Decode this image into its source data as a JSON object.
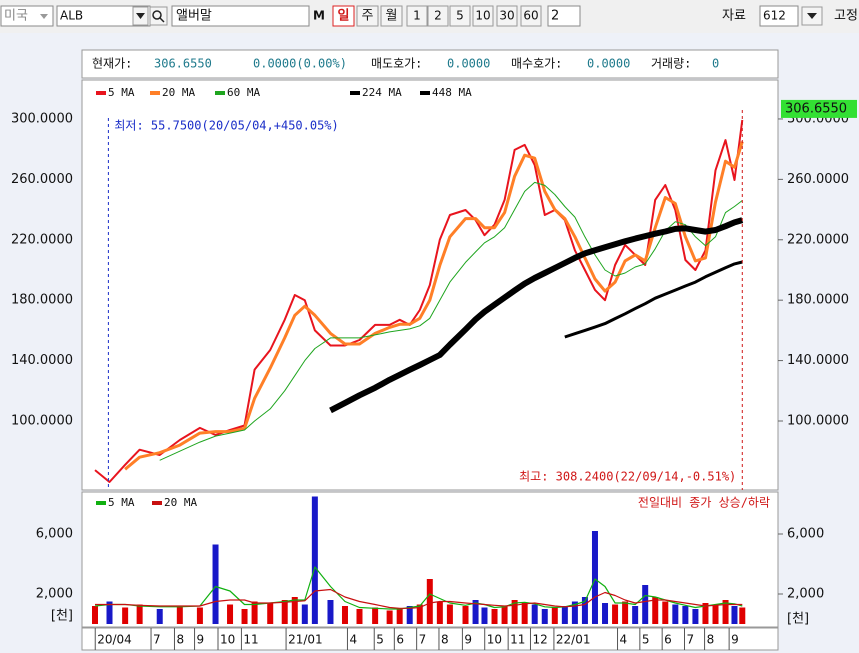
{
  "toolbar": {
    "market": "미국",
    "symbol": "ALB",
    "name": "앨버말",
    "m_button": "M",
    "periods": [
      "일",
      "주",
      "월"
    ],
    "intervals": [
      "1",
      "2",
      "5",
      "10",
      "30",
      "60"
    ],
    "interval_input": "2",
    "data_label": "자료",
    "data_count": "612",
    "fixed": "고정"
  },
  "info_bar": {
    "current_label": "현재가:",
    "current": "306.6550",
    "change": "0.0000(0.00%)",
    "ask_label": "매도호가:",
    "ask": "0.0000",
    "bid_label": "매수호가:",
    "bid": "0.0000",
    "volume_label": "거래량:",
    "volume": "0"
  },
  "chart_data": [
    {
      "type": "line",
      "x": [
        0,
        13,
        27,
        40,
        58,
        76,
        94,
        108,
        121,
        134,
        143,
        157,
        170,
        179,
        188,
        197,
        211,
        224,
        237,
        251,
        264,
        273,
        282,
        291,
        300,
        309,
        318,
        332,
        341,
        349,
        358,
        367,
        376,
        385,
        394,
        403,
        412,
        421,
        430,
        439,
        448,
        457,
        466,
        475,
        484,
        493,
        502,
        511,
        520,
        529,
        538,
        547,
        556,
        565,
        573,
        580
      ],
      "xlim": [
        0,
        612
      ],
      "ylim": [
        54.3,
        325.8
      ],
      "yticks": [
        {
          "value": 300,
          "label": "300.0000"
        },
        {
          "value": 260,
          "label": "260.0000"
        },
        {
          "value": 220,
          "label": "220.0000"
        },
        {
          "value": 180,
          "label": "180.0000"
        },
        {
          "value": 140,
          "label": "140.0000"
        },
        {
          "value": 100,
          "label": "100.0000"
        }
      ],
      "grid": false,
      "series": [
        {
          "name": "5 MA",
          "color": "#e8141e",
          "line_width": 2,
          "values": [
            67.5,
            59.6,
            71,
            81,
            77.5,
            87.4,
            95.4,
            90.7,
            94,
            97,
            134,
            147,
            167,
            183.4,
            180,
            160,
            150,
            150,
            153.6,
            163.6,
            163.6,
            167,
            163.6,
            173.5,
            190,
            220,
            236.4,
            239.7,
            233,
            223,
            230,
            246.4,
            279.5,
            282.8,
            269.5,
            236.4,
            239.7,
            233,
            213,
            200,
            186.8,
            180,
            203.3,
            216.6,
            210,
            203.3,
            246.4,
            256.3,
            239.7,
            206.6,
            200,
            213,
            266,
            286,
            259.6,
            299.3
          ]
        },
        {
          "name": "20 MA",
          "color": "#ff7f27",
          "line_width": 3,
          "values": [
            null,
            null,
            68,
            76,
            79,
            84,
            92,
            93,
            93,
            95,
            115,
            135,
            155,
            170,
            176,
            170,
            158,
            151,
            151,
            158,
            162,
            164,
            164,
            168,
            180,
            203,
            222,
            234,
            234,
            228,
            228,
            238,
            262,
            276,
            274,
            252,
            240,
            234,
            222,
            208,
            194,
            186,
            192,
            206,
            210,
            206,
            228,
            248,
            244,
            222,
            206,
            208,
            245,
            272,
            268,
            285
          ]
        },
        {
          "name": "60 MA",
          "color": "#1fa51f",
          "line_width": 1,
          "values": [
            null,
            null,
            null,
            null,
            74,
            80,
            86,
            90,
            92,
            94,
            100,
            108,
            120,
            130,
            140,
            148,
            155,
            155,
            155,
            157,
            159,
            160,
            161,
            163,
            168,
            180,
            192,
            205,
            212,
            218,
            222,
            228,
            240,
            252,
            258,
            256,
            250,
            242,
            235,
            222,
            210,
            200,
            196,
            198,
            202,
            204,
            214,
            226,
            232,
            230,
            222,
            216,
            222,
            238,
            242,
            246
          ]
        },
        {
          "name": "224 MA",
          "color": "#000000",
          "line_width": 6,
          "values": [
            null,
            null,
            null,
            null,
            null,
            null,
            null,
            null,
            null,
            null,
            null,
            null,
            null,
            null,
            null,
            null,
            107,
            112,
            117,
            122,
            127.3,
            130.6,
            133.9,
            137.1,
            140.4,
            143.7,
            150.5,
            160.6,
            167.3,
            172.3,
            177,
            181.7,
            186.4,
            191,
            194.7,
            198,
            201.3,
            204.6,
            208,
            211,
            213,
            215,
            217,
            219,
            220.8,
            222.4,
            224,
            225.5,
            227.2,
            227.6,
            226.5,
            225.4,
            226.5,
            229,
            231.5,
            233
          ]
        },
        {
          "name": "448 MA",
          "color": "#000000",
          "line_width": 3,
          "values": [
            null,
            null,
            null,
            null,
            null,
            null,
            null,
            null,
            null,
            null,
            null,
            null,
            null,
            null,
            null,
            null,
            null,
            null,
            null,
            null,
            null,
            null,
            null,
            null,
            null,
            null,
            null,
            null,
            null,
            null,
            null,
            null,
            null,
            null,
            null,
            null,
            null,
            155.6,
            157.8,
            160,
            162.2,
            164.5,
            167.8,
            171,
            174.4,
            177.7,
            181.3,
            184,
            186.7,
            189.4,
            192,
            195.5,
            198.5,
            201.5,
            204,
            205.3
          ]
        }
      ],
      "low_marker": {
        "label": "최저: 55.7500(20/05/04,+450.05%)",
        "x": 12,
        "color": "#1a2ec8"
      },
      "high_marker": {
        "label": "최고: 308.2400(22/09/14,-0.51%)",
        "x": 580,
        "color": "#d01818"
      },
      "last_price": 306.655,
      "last_price_label": "306.6550",
      "last_price_color": "#33e033"
    },
    {
      "type": "bar",
      "x": [
        0,
        13,
        27,
        40,
        58,
        76,
        94,
        108,
        121,
        134,
        143,
        157,
        170,
        179,
        188,
        197,
        211,
        224,
        237,
        251,
        264,
        273,
        282,
        291,
        300,
        309,
        318,
        332,
        341,
        349,
        358,
        367,
        376,
        385,
        394,
        403,
        412,
        421,
        430,
        439,
        448,
        457,
        466,
        475,
        484,
        493,
        502,
        511,
        520,
        529,
        538,
        547,
        556,
        565,
        573,
        580
      ],
      "xlim": [
        0,
        612
      ],
      "values": [
        1200,
        1500,
        1100,
        1300,
        1000,
        1200,
        1100,
        5300,
        1300,
        1000,
        1500,
        1400,
        1600,
        1800,
        1300,
        8500,
        1600,
        1200,
        1000,
        1100,
        900,
        1000,
        1200,
        1300,
        3000,
        1500,
        1300,
        1200,
        1600,
        1100,
        1000,
        1200,
        1600,
        1400,
        1300,
        1000,
        1100,
        1200,
        1500,
        1800,
        6200,
        1400,
        1300,
        1500,
        1200,
        2600,
        1800,
        1500,
        1300,
        1200,
        1000,
        1400,
        1300,
        1600,
        1200,
        1100
      ],
      "up_color": "#e00000",
      "down_color": "#1818c8",
      "series": [
        {
          "name": "5 MA",
          "color": "#10b010",
          "values": [
            1200,
            1300,
            1300,
            1200,
            1150,
            1150,
            1200,
            2500,
            2200,
            1300,
            1300,
            1400,
            1500,
            1600,
            1600,
            3800,
            2500,
            1500,
            1100,
            1050,
            1000,
            1000,
            1100,
            1200,
            2000,
            1700,
            1400,
            1250,
            1400,
            1300,
            1100,
            1150,
            1400,
            1450,
            1350,
            1150,
            1100,
            1150,
            1300,
            1500,
            3000,
            2500,
            1400,
            1400,
            1300,
            1900,
            1800,
            1600,
            1400,
            1250,
            1100,
            1200,
            1300,
            1400,
            1350,
            1200
          ]
        },
        {
          "name": "20 MA",
          "color": "#c81010",
          "values": [
            1300,
            1300,
            1300,
            1250,
            1200,
            1200,
            1200,
            1500,
            1600,
            1600,
            1400,
            1400,
            1450,
            1500,
            1550,
            2200,
            2300,
            1800,
            1500,
            1300,
            1100,
            1050,
            1050,
            1100,
            1400,
            1500,
            1500,
            1400,
            1350,
            1300,
            1250,
            1200,
            1250,
            1350,
            1400,
            1300,
            1200,
            1150,
            1200,
            1300,
            1800,
            2100,
            1900,
            1600,
            1400,
            1500,
            1600,
            1600,
            1500,
            1400,
            1300,
            1200,
            1250,
            1300,
            1300,
            1300
          ]
        }
      ],
      "ylim": [
        -200,
        8800
      ],
      "yticks": [
        {
          "value": 6000,
          "label": "6,000"
        },
        {
          "value": 2000,
          "label": "2,000"
        }
      ],
      "unit_label": "[천]",
      "note": "전일대비 종가 상승/하락",
      "xticks": [
        {
          "value": 2,
          "label": "20/04"
        },
        {
          "value": 52,
          "label": "7"
        },
        {
          "value": 73,
          "label": "8"
        },
        {
          "value": 91,
          "label": "9"
        },
        {
          "value": 112,
          "label": "10"
        },
        {
          "value": 133,
          "label": "11"
        },
        {
          "value": 173,
          "label": "21/01"
        },
        {
          "value": 228,
          "label": "4"
        },
        {
          "value": 252,
          "label": "5"
        },
        {
          "value": 270,
          "label": "6"
        },
        {
          "value": 290,
          "label": "7"
        },
        {
          "value": 310,
          "label": "8"
        },
        {
          "value": 331,
          "label": "9"
        },
        {
          "value": 351,
          "label": "10"
        },
        {
          "value": 372,
          "label": "11"
        },
        {
          "value": 392,
          "label": "12"
        },
        {
          "value": 413,
          "label": "22/01"
        },
        {
          "value": 470,
          "label": "4"
        },
        {
          "value": 490,
          "label": "5"
        },
        {
          "value": 510,
          "label": "6"
        },
        {
          "value": 530,
          "label": "7"
        },
        {
          "value": 548,
          "label": "8"
        },
        {
          "value": 570,
          "label": "9"
        }
      ]
    }
  ]
}
